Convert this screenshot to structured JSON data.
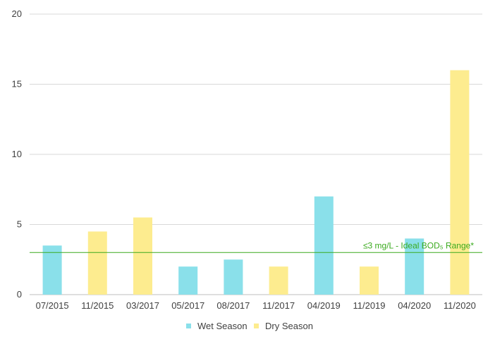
{
  "chart_data": {
    "type": "bar",
    "categories": [
      "07/2015",
      "11/2015",
      "03/2017",
      "05/2017",
      "08/2017",
      "11/2017",
      "04/2019",
      "11/2019",
      "04/2020",
      "11/2020"
    ],
    "values": [
      3.5,
      4.5,
      5.5,
      2,
      2.5,
      2,
      7,
      2,
      4,
      16
    ],
    "season": [
      "Wet Season",
      "Dry Season",
      "Dry Season",
      "Wet Season",
      "Wet Season",
      "Dry Season",
      "Wet Season",
      "Dry Season",
      "Wet Season",
      "Dry Season"
    ],
    "series": [
      {
        "name": "Wet Season",
        "color": "#8ae0ea"
      },
      {
        "name": "Dry Season",
        "color": "#fdec8f"
      }
    ],
    "ylim": [
      0,
      20
    ],
    "yticks": [
      0,
      5,
      10,
      15,
      20
    ],
    "grid": true,
    "legend_position": "bottom",
    "threshold": {
      "value": 3,
      "label": "≤3 mg/L - Ideal BOD₅ Range*",
      "color": "#3aaa1e"
    },
    "title": "",
    "xlabel": "",
    "ylabel": ""
  }
}
